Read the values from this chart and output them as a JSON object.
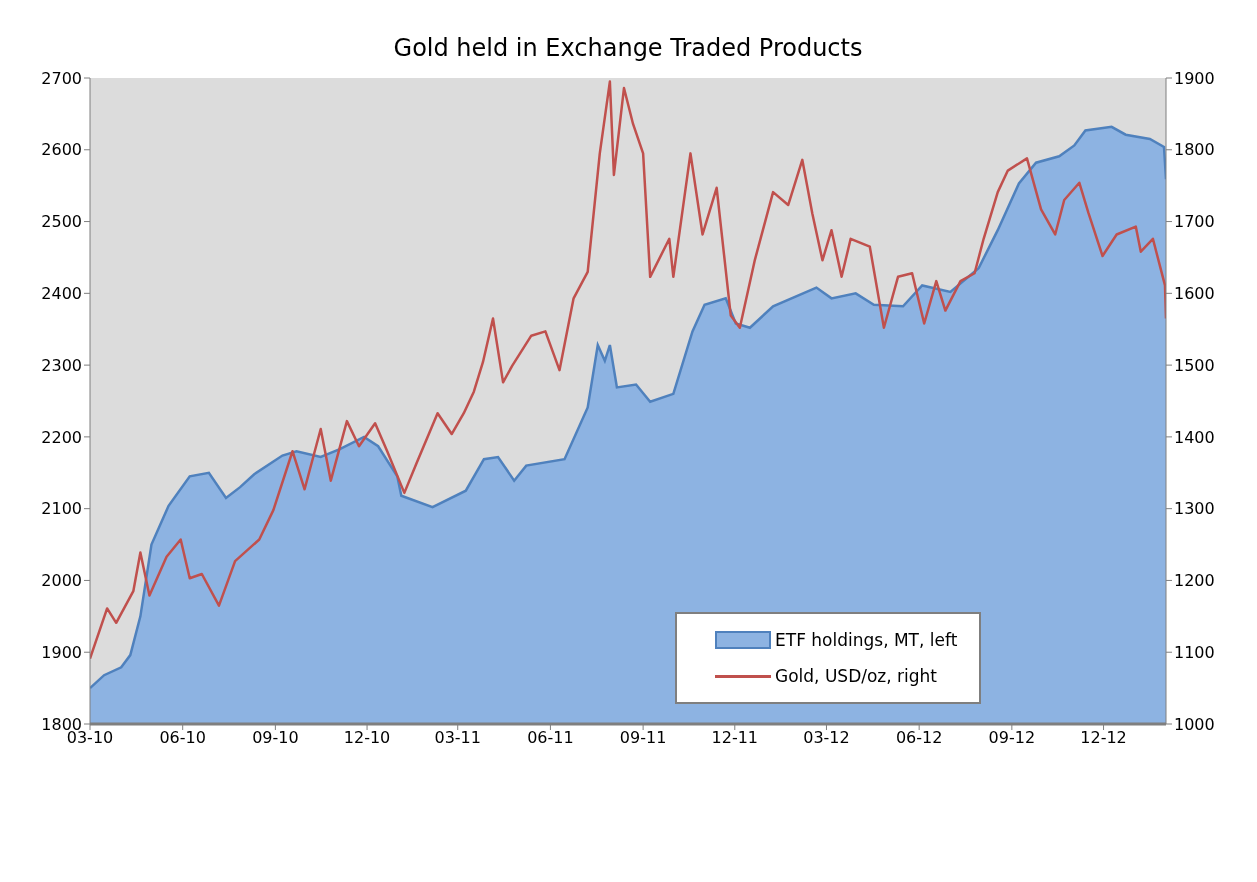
{
  "chart_data": {
    "type": "area",
    "title": "Gold held in Exchange Traded Products",
    "xlim": [
      "2010-03-01",
      "2013-02-01"
    ],
    "xticks": [
      {
        "value": "2010-03-01",
        "label": "03-10"
      },
      {
        "value": "2010-06-01",
        "label": "06-10"
      },
      {
        "value": "2010-09-01",
        "label": "09-10"
      },
      {
        "value": "2010-12-01",
        "label": "12-10"
      },
      {
        "value": "2011-03-01",
        "label": "03-11"
      },
      {
        "value": "2011-06-01",
        "label": "06-11"
      },
      {
        "value": "2011-09-01",
        "label": "09-11"
      },
      {
        "value": "2011-12-01",
        "label": "12-11"
      },
      {
        "value": "2012-03-01",
        "label": "03-12"
      },
      {
        "value": "2012-06-01",
        "label": "06-12"
      },
      {
        "value": "2012-09-01",
        "label": "09-12"
      },
      {
        "value": "2012-12-01",
        "label": "12-12"
      }
    ],
    "ylim": [
      1800,
      2700
    ],
    "yticks": [
      1800,
      1900,
      2000,
      2100,
      2200,
      2300,
      2400,
      2500,
      2600,
      2700
    ],
    "y2lim": [
      1000,
      1900
    ],
    "y2ticks": [
      1000,
      1100,
      1200,
      1300,
      1400,
      1500,
      1600,
      1700,
      1800,
      1900
    ],
    "grid": false,
    "legend": "bottom right",
    "series": [
      {
        "name": "ETF holdings, MT, left",
        "color": "#4f81bd",
        "x": [
          "2010-03-01",
          "2010-03-15",
          "2010-04-01",
          "2010-04-10",
          "2010-04-20",
          "2010-05-01",
          "2010-05-18",
          "2010-06-08",
          "2010-06-27",
          "2010-07-14",
          "2010-07-28",
          "2010-08-11",
          "2010-09-08",
          "2010-09-22",
          "2010-10-16",
          "2010-11-04",
          "2010-11-28",
          "2010-12-12",
          "2010-12-31",
          "2011-01-04",
          "2011-02-04",
          "2011-03-09",
          "2011-03-27",
          "2011-04-10",
          "2011-04-26",
          "2011-05-08",
          "2011-06-15",
          "2011-07-08",
          "2011-07-18",
          "2011-07-25",
          "2011-07-30",
          "2011-08-06",
          "2011-08-25",
          "2011-09-08",
          "2011-10-01",
          "2011-10-20",
          "2011-11-01",
          "2011-11-22",
          "2011-12-02",
          "2011-12-16",
          "2012-01-08",
          "2012-02-20",
          "2012-03-06",
          "2012-03-30",
          "2012-04-17",
          "2012-05-16",
          "2012-06-04",
          "2012-07-02",
          "2012-07-30",
          "2012-08-18",
          "2012-09-08",
          "2012-09-25",
          "2012-10-18",
          "2012-11-02",
          "2012-11-13",
          "2012-12-09",
          "2012-12-23",
          "2013-01-16",
          "2013-01-30",
          "2013-02-01"
        ],
        "values": [
          1850,
          1868,
          1879,
          1896,
          1950,
          2050,
          2104,
          2145,
          2150,
          2115,
          2130,
          2148,
          2174,
          2180,
          2172,
          2183,
          2200,
          2187,
          2145,
          2118,
          2102,
          2125,
          2169,
          2172,
          2139,
          2160,
          2169,
          2241,
          2328,
          2306,
          2328,
          2269,
          2273,
          2249,
          2260,
          2347,
          2384,
          2393,
          2358,
          2352,
          2382,
          2408,
          2393,
          2400,
          2384,
          2382,
          2411,
          2402,
          2435,
          2488,
          2553,
          2582,
          2591,
          2606,
          2627,
          2632,
          2621,
          2615,
          2604,
          2559
        ]
      },
      {
        "name": "Gold, USD/oz, right",
        "type": "line",
        "axis": "y2",
        "color": "#c0504d",
        "x": [
          "2010-03-01",
          "2010-03-18",
          "2010-03-27",
          "2010-04-13",
          "2010-04-20",
          "2010-04-29",
          "2010-05-16",
          "2010-05-30",
          "2010-06-08",
          "2010-06-20",
          "2010-07-07",
          "2010-07-23",
          "2010-08-16",
          "2010-08-30",
          "2010-09-18",
          "2010-09-30",
          "2010-10-16",
          "2010-10-26",
          "2010-11-11",
          "2010-11-23",
          "2010-12-09",
          "2010-12-21",
          "2011-01-07",
          "2011-01-19",
          "2011-02-09",
          "2011-02-23",
          "2011-03-07",
          "2011-03-17",
          "2011-03-26",
          "2011-04-05",
          "2011-04-15",
          "2011-04-24",
          "2011-05-13",
          "2011-05-27",
          "2011-06-10",
          "2011-06-24",
          "2011-07-08",
          "2011-07-20",
          "2011-07-30",
          "2011-08-03",
          "2011-08-13",
          "2011-08-22",
          "2011-09-01",
          "2011-09-08",
          "2011-09-27",
          "2011-10-01",
          "2011-10-18",
          "2011-10-30",
          "2011-11-13",
          "2011-11-27",
          "2011-12-06",
          "2011-12-21",
          "2012-01-08",
          "2012-01-23",
          "2012-02-06",
          "2012-02-16",
          "2012-02-26",
          "2012-03-06",
          "2012-03-16",
          "2012-03-25",
          "2012-04-13",
          "2012-04-27",
          "2012-05-11",
          "2012-05-25",
          "2012-06-06",
          "2012-06-18",
          "2012-06-27",
          "2012-07-12",
          "2012-07-26",
          "2012-08-04",
          "2012-08-18",
          "2012-08-28",
          "2012-09-16",
          "2012-09-30",
          "2012-10-14",
          "2012-10-23",
          "2012-11-07",
          "2012-11-16",
          "2012-11-30",
          "2012-12-14",
          "2013-01-02",
          "2013-01-07",
          "2013-01-19",
          "2013-01-31",
          "2013-02-01"
        ],
        "values": [
          1091,
          1161,
          1141,
          1185,
          1239,
          1179,
          1233,
          1257,
          1203,
          1209,
          1165,
          1227,
          1257,
          1298,
          1380,
          1327,
          1411,
          1339,
          1422,
          1387,
          1419,
          1380,
          1322,
          1363,
          1433,
          1404,
          1433,
          1463,
          1504,
          1565,
          1476,
          1499,
          1541,
          1547,
          1493,
          1593,
          1630,
          1795,
          1895,
          1765,
          1886,
          1836,
          1795,
          1623,
          1676,
          1623,
          1795,
          1682,
          1747,
          1569,
          1552,
          1647,
          1741,
          1723,
          1786,
          1711,
          1646,
          1688,
          1623,
          1676,
          1665,
          1552,
          1623,
          1628,
          1558,
          1617,
          1576,
          1617,
          1628,
          1676,
          1741,
          1771,
          1788,
          1717,
          1682,
          1730,
          1754,
          1712,
          1652,
          1682,
          1693,
          1658,
          1676,
          1611,
          1565
        ]
      }
    ]
  }
}
